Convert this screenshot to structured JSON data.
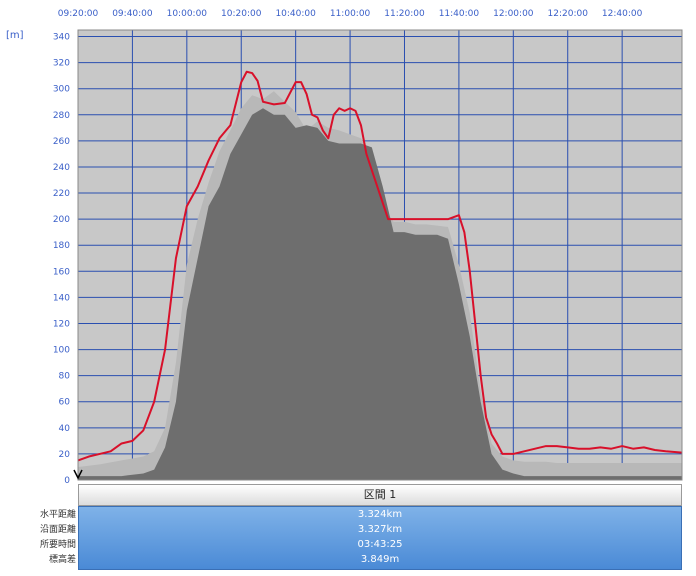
{
  "chart_data": {
    "type": "area",
    "unit_label": "[m]",
    "x_ticks": [
      "09:20:00",
      "09:40:00",
      "10:00:00",
      "10:20:00",
      "10:40:00",
      "11:00:00",
      "11:20:00",
      "11:40:00",
      "12:00:00",
      "12:20:00",
      "12:40:00"
    ],
    "y_ticks": [
      0,
      20,
      40,
      60,
      80,
      100,
      120,
      140,
      160,
      180,
      200,
      220,
      240,
      260,
      280,
      300,
      320,
      340
    ],
    "ylim": [
      0,
      345
    ],
    "xlim_minutes": [
      0,
      222
    ],
    "grid": true,
    "series": [
      {
        "style": "gray-area",
        "color": "#6e6e6e",
        "x": [
          0,
          8,
          16,
          24,
          28,
          32,
          36,
          40,
          44,
          48,
          52,
          56,
          60,
          64,
          68,
          72,
          76,
          80,
          84,
          88,
          92,
          96,
          100,
          104,
          108,
          112,
          116,
          120,
          124,
          128,
          132,
          136,
          140,
          144,
          148,
          152,
          156,
          160,
          164,
          168,
          172,
          176,
          180,
          184,
          188,
          192,
          196,
          200,
          204,
          208,
          212,
          216,
          222
        ],
        "y": [
          3,
          3,
          3,
          5,
          8,
          25,
          60,
          130,
          170,
          210,
          225,
          250,
          265,
          280,
          285,
          280,
          280,
          270,
          272,
          270,
          260,
          258,
          258,
          258,
          255,
          225,
          190,
          190,
          188,
          188,
          188,
          185,
          150,
          110,
          60,
          20,
          8,
          5,
          3,
          3,
          3,
          3,
          3,
          3,
          3,
          3,
          3,
          3,
          3,
          3,
          3,
          3,
          3
        ]
      },
      {
        "style": "light-band",
        "color": "#b8b8b8",
        "x": [
          0,
          8,
          16,
          24,
          28,
          32,
          36,
          40,
          44,
          48,
          52,
          56,
          60,
          64,
          68,
          72,
          76,
          80,
          84,
          88,
          92,
          96,
          100,
          104,
          108,
          112,
          116,
          120,
          124,
          128,
          132,
          136,
          140,
          144,
          148,
          152,
          156,
          160,
          164,
          168,
          172,
          176,
          180,
          184,
          188,
          192,
          196,
          200,
          204,
          208,
          212,
          216,
          222
        ],
        "y": [
          10,
          12,
          15,
          18,
          22,
          40,
          90,
          165,
          200,
          228,
          252,
          268,
          285,
          295,
          292,
          298,
          290,
          282,
          268,
          275,
          270,
          268,
          265,
          262,
          250,
          210,
          198,
          198,
          196,
          196,
          195,
          194,
          165,
          128,
          68,
          28,
          18,
          15,
          14,
          14,
          14,
          13,
          13,
          13,
          13,
          13,
          13,
          13,
          13,
          13,
          13,
          13,
          13
        ]
      },
      {
        "style": "red-line",
        "color": "#d8102a",
        "x": [
          0,
          4,
          8,
          12,
          16,
          20,
          24,
          28,
          32,
          36,
          40,
          44,
          48,
          52,
          56,
          60,
          62,
          64,
          66,
          68,
          70,
          72,
          76,
          80,
          82,
          84,
          86,
          88,
          90,
          92,
          94,
          96,
          98,
          100,
          102,
          104,
          106,
          110,
          114,
          118,
          120,
          124,
          128,
          132,
          136,
          140,
          142,
          144,
          146,
          148,
          150,
          152,
          154,
          156,
          160,
          164,
          168,
          172,
          176,
          180,
          184,
          188,
          192,
          196,
          200,
          204,
          208,
          212,
          216,
          222
        ],
        "y": [
          15,
          18,
          20,
          22,
          28,
          30,
          38,
          60,
          100,
          170,
          210,
          225,
          245,
          262,
          272,
          305,
          313,
          312,
          306,
          290,
          289,
          288,
          289,
          305,
          305,
          296,
          280,
          278,
          268,
          262,
          280,
          285,
          283,
          285,
          283,
          272,
          250,
          225,
          200,
          200,
          200,
          200,
          200,
          200,
          200,
          203,
          190,
          160,
          120,
          80,
          48,
          35,
          28,
          20,
          20,
          22,
          24,
          26,
          26,
          25,
          24,
          24,
          25,
          24,
          26,
          24,
          25,
          23,
          22,
          21
        ]
      }
    ]
  },
  "section": {
    "title": "区間 1"
  },
  "stats": {
    "labels": [
      "水平距離",
      "沿面距離",
      "所要時間",
      "標高差"
    ],
    "values": [
      "3.324km",
      "3.327km",
      "03:43:25",
      "3.849m"
    ]
  }
}
